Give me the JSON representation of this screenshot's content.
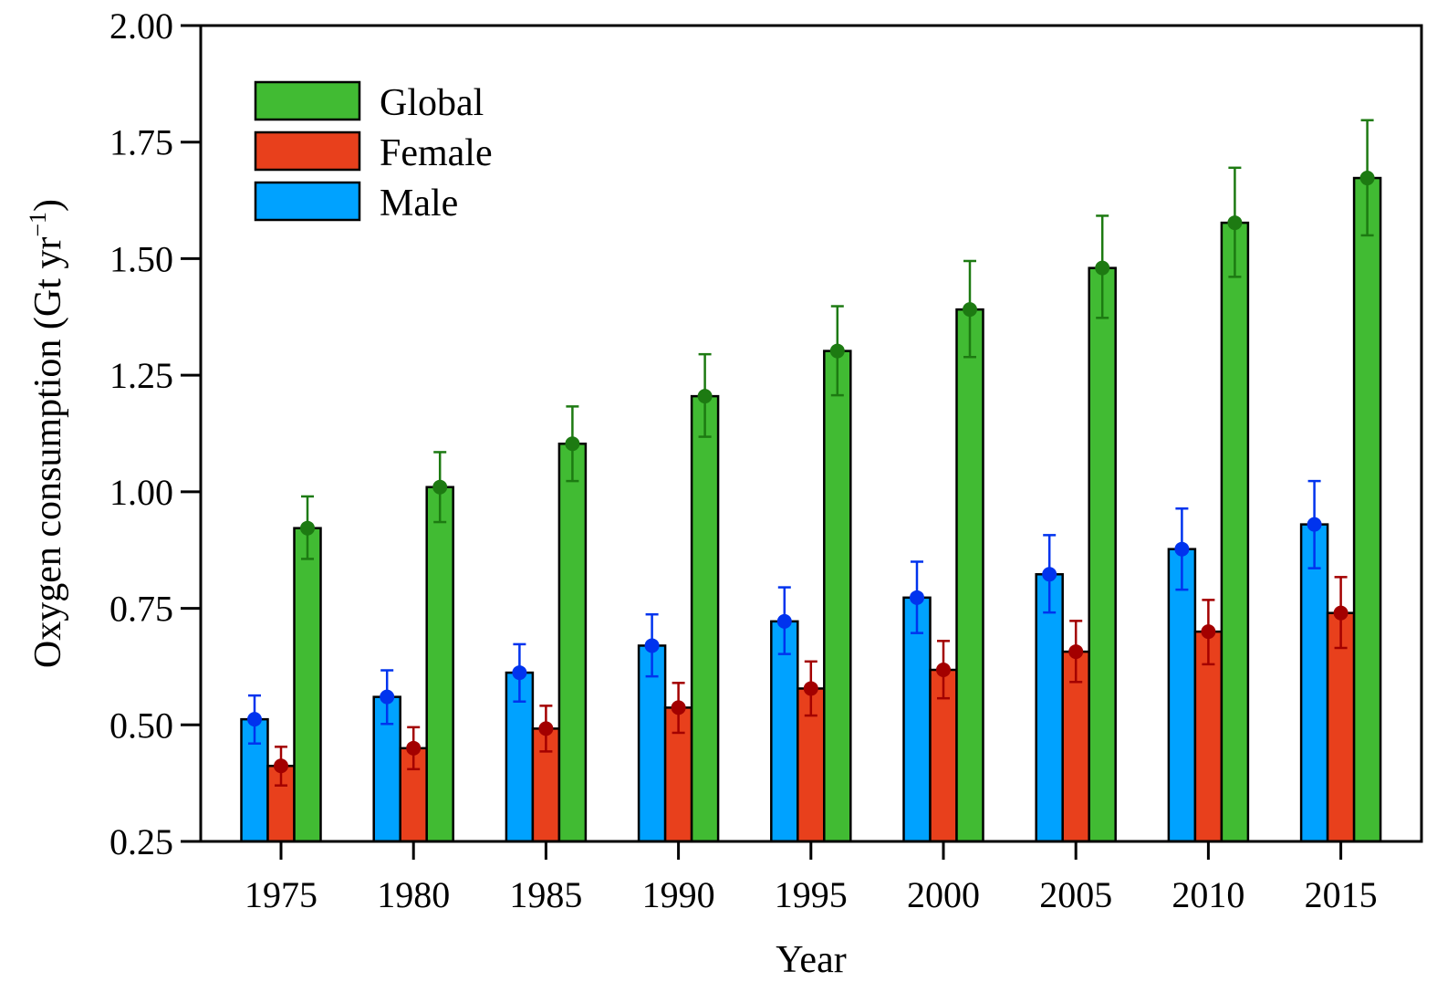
{
  "chart_data": {
    "type": "bar",
    "xlabel": "Year",
    "ylabel": "Oxygen consumption (Gt yr",
    "ylabel_sup": "−1",
    "ylabel_close": ")",
    "ylim": [
      0.25,
      2.0
    ],
    "yticks": [
      "0.25",
      "0.50",
      "0.75",
      "1.00",
      "1.25",
      "1.50",
      "1.75",
      "2.00"
    ],
    "categories": [
      "1975",
      "1980",
      "1985",
      "1990",
      "1995",
      "2000",
      "2005",
      "2010",
      "2015"
    ],
    "legend_position": "top-left",
    "grid": false,
    "series": [
      {
        "name": "Male",
        "color": "#00a2ff",
        "marker_color": "#0033ee",
        "values": [
          0.512,
          0.56,
          0.612,
          0.67,
          0.722,
          0.773,
          0.823,
          0.877,
          0.93
        ],
        "err_low": [
          0.46,
          0.502,
          0.55,
          0.604,
          0.652,
          0.697,
          0.741,
          0.79,
          0.836
        ],
        "err_high": [
          0.563,
          0.617,
          0.673,
          0.737,
          0.795,
          0.85,
          0.907,
          0.964,
          1.023
        ]
      },
      {
        "name": "Female",
        "color": "#e8401c",
        "marker_color": "#a30000",
        "values": [
          0.412,
          0.45,
          0.492,
          0.537,
          0.578,
          0.618,
          0.657,
          0.7,
          0.74
        ],
        "err_low": [
          0.37,
          0.405,
          0.443,
          0.483,
          0.52,
          0.557,
          0.592,
          0.63,
          0.665
        ],
        "err_high": [
          0.453,
          0.495,
          0.541,
          0.59,
          0.636,
          0.68,
          0.723,
          0.768,
          0.817
        ]
      },
      {
        "name": "Global",
        "color": "#41bb33",
        "marker_color": "#1d7a12",
        "values": [
          0.922,
          1.01,
          1.103,
          1.205,
          1.302,
          1.391,
          1.48,
          1.577,
          1.673
        ],
        "err_low": [
          0.856,
          0.935,
          1.023,
          1.118,
          1.207,
          1.289,
          1.373,
          1.461,
          1.55
        ],
        "err_high": [
          0.99,
          1.085,
          1.183,
          1.295,
          1.398,
          1.495,
          1.592,
          1.695,
          1.797
        ]
      }
    ],
    "legend_order": [
      "Global",
      "Female",
      "Male"
    ]
  }
}
